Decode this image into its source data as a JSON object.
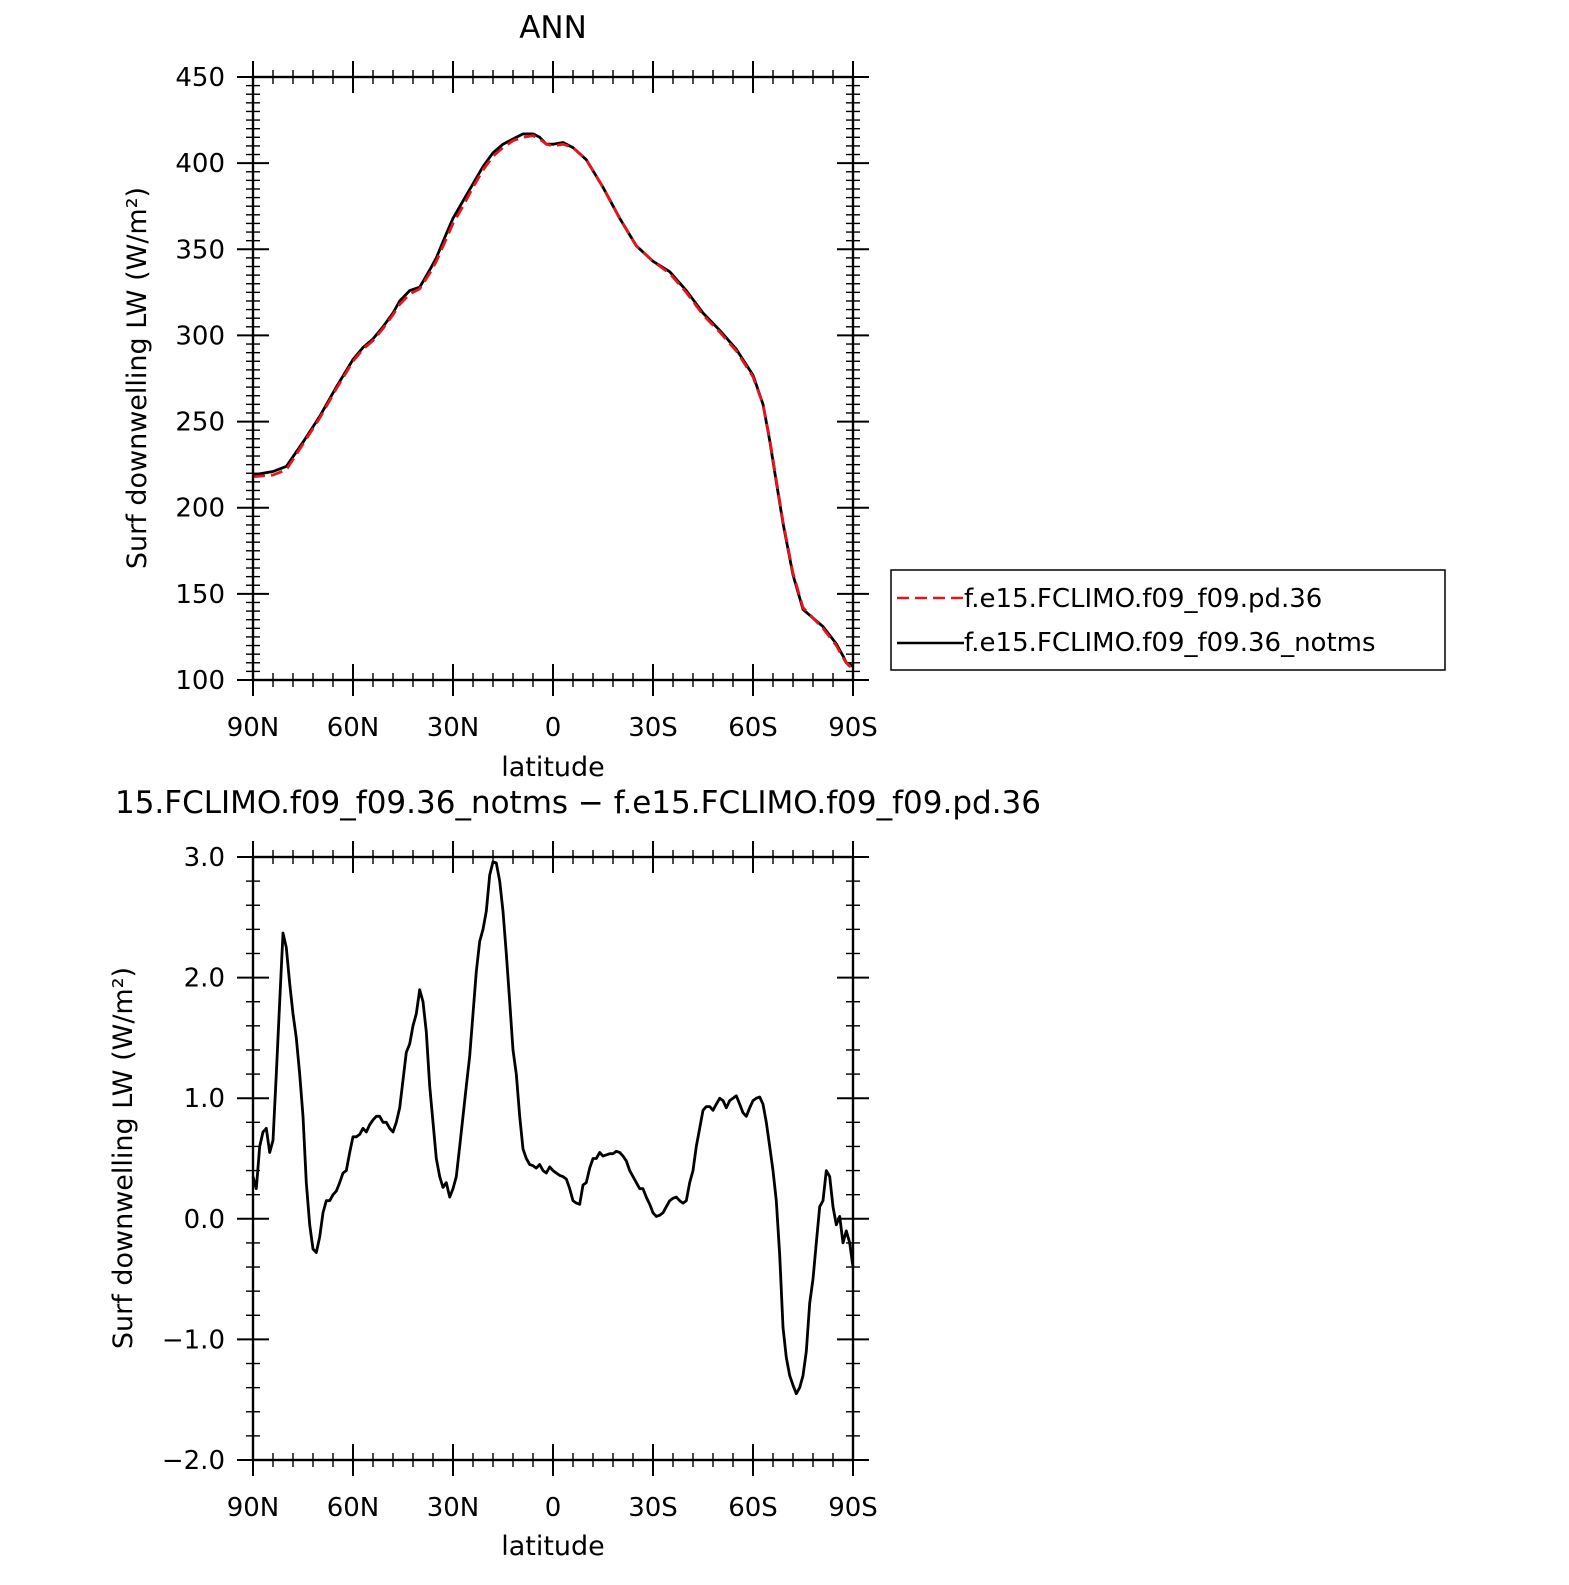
{
  "chart_data": [
    {
      "type": "line",
      "title": "ANN",
      "xlabel": "latitude",
      "ylabel": "Surf downwelling LW (W/m²)",
      "xlim": [
        90,
        -90
      ],
      "ylim": [
        100,
        450
      ],
      "xticks": [
        90,
        60,
        30,
        0,
        -30,
        -60,
        -90
      ],
      "xtick_labels": [
        "90N",
        "60N",
        "30N",
        "0",
        "30S",
        "60S",
        "90S"
      ],
      "yticks": [
        100,
        150,
        200,
        250,
        300,
        350,
        400,
        450
      ],
      "ytick_labels": [
        "100",
        "150",
        "200",
        "250",
        "300",
        "350",
        "400",
        "450"
      ],
      "grid": false,
      "legend_position": "right, outside plot",
      "series": [
        {
          "name": "f.e15.FCLIMO.f09_f09.pd.36",
          "color": "#e8141b",
          "dash": "dashed",
          "x": [
            90,
            84,
            80,
            75,
            70,
            65,
            60,
            57,
            54,
            51,
            48,
            46,
            43,
            40,
            37,
            35,
            32,
            30,
            27,
            24,
            21,
            18,
            15,
            12,
            9,
            6,
            4,
            2,
            0,
            -3,
            -6,
            -10,
            -15,
            -20,
            -25,
            -30,
            -35,
            -40,
            -45,
            -50,
            -55,
            -60,
            -63,
            -65,
            -67,
            -69,
            -72,
            -75,
            -78,
            -81,
            -85,
            -87,
            -88,
            -89,
            -90
          ],
          "y": [
            218,
            219,
            222,
            237,
            252,
            269,
            285,
            292,
            297,
            304,
            312,
            318,
            324,
            327,
            336,
            343,
            356,
            365,
            375,
            386,
            396,
            404,
            409,
            413,
            415,
            416,
            414,
            411,
            410,
            411,
            409,
            402,
            386,
            368,
            352,
            343,
            336,
            325,
            312,
            302,
            291,
            276,
            260,
            240,
            216,
            192,
            162,
            142,
            136,
            130,
            120,
            113,
            110,
            108,
            107
          ]
        },
        {
          "name": "f.e15.FCLIMO.f09_f09.36_notms",
          "color": "#000000",
          "dash": "solid",
          "x": [
            90,
            84,
            80,
            75,
            70,
            65,
            60,
            57,
            54,
            51,
            48,
            46,
            43,
            40,
            37,
            35,
            32,
            30,
            27,
            24,
            21,
            18,
            15,
            12,
            9,
            6,
            4,
            2,
            0,
            -3,
            -6,
            -10,
            -15,
            -20,
            -25,
            -30,
            -35,
            -40,
            -45,
            -50,
            -55,
            -60,
            -63,
            -65,
            -67,
            -69,
            -72,
            -75,
            -78,
            -81,
            -85,
            -87,
            -88,
            -89,
            -90
          ],
          "y": [
            219,
            221,
            224,
            238,
            253,
            270,
            286,
            293,
            298,
            305,
            313,
            320,
            326,
            328,
            338,
            345,
            359,
            368,
            378,
            388,
            398,
            406,
            411,
            414,
            417,
            417,
            415,
            411,
            411,
            412,
            409,
            402,
            386,
            368,
            352,
            343,
            337,
            326,
            313,
            303,
            292,
            277,
            260,
            239,
            215,
            191,
            161,
            141,
            136,
            131,
            121,
            114,
            110,
            109,
            108
          ]
        }
      ]
    },
    {
      "type": "line",
      "title": "15.FCLIMO.f09_f09.36_notms − f.e15.FCLIMO.f09_f09.pd.36",
      "xlabel": "latitude",
      "ylabel": "Surf downwelling LW (W/m²)",
      "xlim": [
        90,
        -90
      ],
      "ylim": [
        -2.0,
        3.0
      ],
      "xticks": [
        90,
        60,
        30,
        0,
        -30,
        -60,
        -90
      ],
      "xtick_labels": [
        "90N",
        "60N",
        "30N",
        "0",
        "30S",
        "60S",
        "90S"
      ],
      "yticks": [
        -2.0,
        -1.0,
        0.0,
        1.0,
        2.0,
        3.0
      ],
      "ytick_labels": [
        "−2.0",
        "−1.0",
        "0.0",
        "1.0",
        "2.0",
        "3.0"
      ],
      "grid": false,
      "series": [
        {
          "color": "#000000",
          "dash": "solid",
          "x": [
            90,
            89,
            88,
            87,
            86,
            85,
            84,
            83,
            82,
            81,
            80,
            79,
            78,
            77,
            76,
            75,
            74,
            73,
            72,
            71,
            70,
            69,
            68,
            67,
            66,
            65,
            64,
            63,
            62,
            61,
            60,
            59,
            58,
            57,
            56,
            55,
            54,
            53,
            52,
            51,
            50,
            49,
            48,
            47,
            46,
            45,
            44,
            43,
            42,
            41,
            40,
            39,
            38,
            37,
            36,
            35,
            34,
            33,
            32,
            31,
            30,
            29,
            28,
            27,
            26,
            25,
            24,
            23,
            22,
            21,
            20,
            19,
            18,
            17,
            16,
            15,
            14,
            13,
            12,
            11,
            10,
            9,
            8,
            7,
            6,
            5,
            4,
            3,
            2,
            1,
            0,
            -1,
            -2,
            -3,
            -4,
            -5,
            -6,
            -7,
            -8,
            -9,
            -10,
            -11,
            -12,
            -13,
            -14,
            -15,
            -16,
            -17,
            -18,
            -19,
            -20,
            -21,
            -22,
            -23,
            -24,
            -25,
            -26,
            -27,
            -28,
            -29,
            -30,
            -31,
            -32,
            -33,
            -34,
            -35,
            -36,
            -37,
            -38,
            -39,
            -40,
            -41,
            -42,
            -43,
            -44,
            -45,
            -46,
            -47,
            -48,
            -49,
            -50,
            -51,
            -52,
            -53,
            -54,
            -55,
            -56,
            -57,
            -58,
            -59,
            -60,
            -61,
            -62,
            -63,
            -64,
            -65,
            -66,
            -67,
            -68,
            -69,
            -70,
            -71,
            -72,
            -73,
            -74,
            -75,
            -76,
            -77,
            -78,
            -79,
            -80,
            -81,
            -82,
            -83,
            -84,
            -85,
            -86,
            -87,
            -88,
            -89,
            -90
          ],
          "y": [
            0.35,
            0.25,
            0.6,
            0.72,
            0.75,
            0.55,
            0.65,
            1.2,
            1.8,
            2.37,
            2.25,
            1.95,
            1.7,
            1.5,
            1.2,
            0.85,
            0.3,
            -0.05,
            -0.25,
            -0.28,
            -0.15,
            0.05,
            0.15,
            0.15,
            0.2,
            0.23,
            0.3,
            0.38,
            0.4,
            0.55,
            0.68,
            0.68,
            0.7,
            0.75,
            0.72,
            0.78,
            0.82,
            0.85,
            0.85,
            0.8,
            0.8,
            0.75,
            0.72,
            0.8,
            0.92,
            1.15,
            1.38,
            1.45,
            1.6,
            1.7,
            1.9,
            1.8,
            1.55,
            1.1,
            0.8,
            0.5,
            0.35,
            0.26,
            0.3,
            0.18,
            0.25,
            0.35,
            0.6,
            0.85,
            1.1,
            1.35,
            1.7,
            2.05,
            2.3,
            2.4,
            2.55,
            2.85,
            2.96,
            2.95,
            2.8,
            2.55,
            2.2,
            1.8,
            1.4,
            1.2,
            0.85,
            0.58,
            0.5,
            0.45,
            0.44,
            0.42,
            0.45,
            0.4,
            0.38,
            0.43,
            0.4,
            0.38,
            0.36,
            0.35,
            0.33,
            0.25,
            0.15,
            0.13,
            0.12,
            0.28,
            0.3,
            0.42,
            0.5,
            0.5,
            0.55,
            0.52,
            0.53,
            0.54,
            0.54,
            0.56,
            0.55,
            0.52,
            0.48,
            0.4,
            0.35,
            0.3,
            0.25,
            0.25,
            0.18,
            0.12,
            0.05,
            0.02,
            0.03,
            0.05,
            0.1,
            0.15,
            0.17,
            0.18,
            0.15,
            0.13,
            0.15,
            0.3,
            0.4,
            0.6,
            0.75,
            0.9,
            0.93,
            0.93,
            0.9,
            0.95,
            1.0,
            0.98,
            0.92,
            0.98,
            1.0,
            1.02,
            0.95,
            0.88,
            0.85,
            0.92,
            0.98,
            1.0,
            1.01,
            0.95,
            0.8,
            0.6,
            0.4,
            0.15,
            -0.3,
            -0.9,
            -1.15,
            -1.3,
            -1.38,
            -1.45,
            -1.4,
            -1.3,
            -1.1,
            -0.7,
            -0.5,
            -0.2,
            0.1,
            0.15,
            0.4,
            0.35,
            0.1,
            -0.05,
            0.02,
            -0.2,
            -0.1,
            -0.2,
            -0.4
          ]
        }
      ]
    }
  ]
}
